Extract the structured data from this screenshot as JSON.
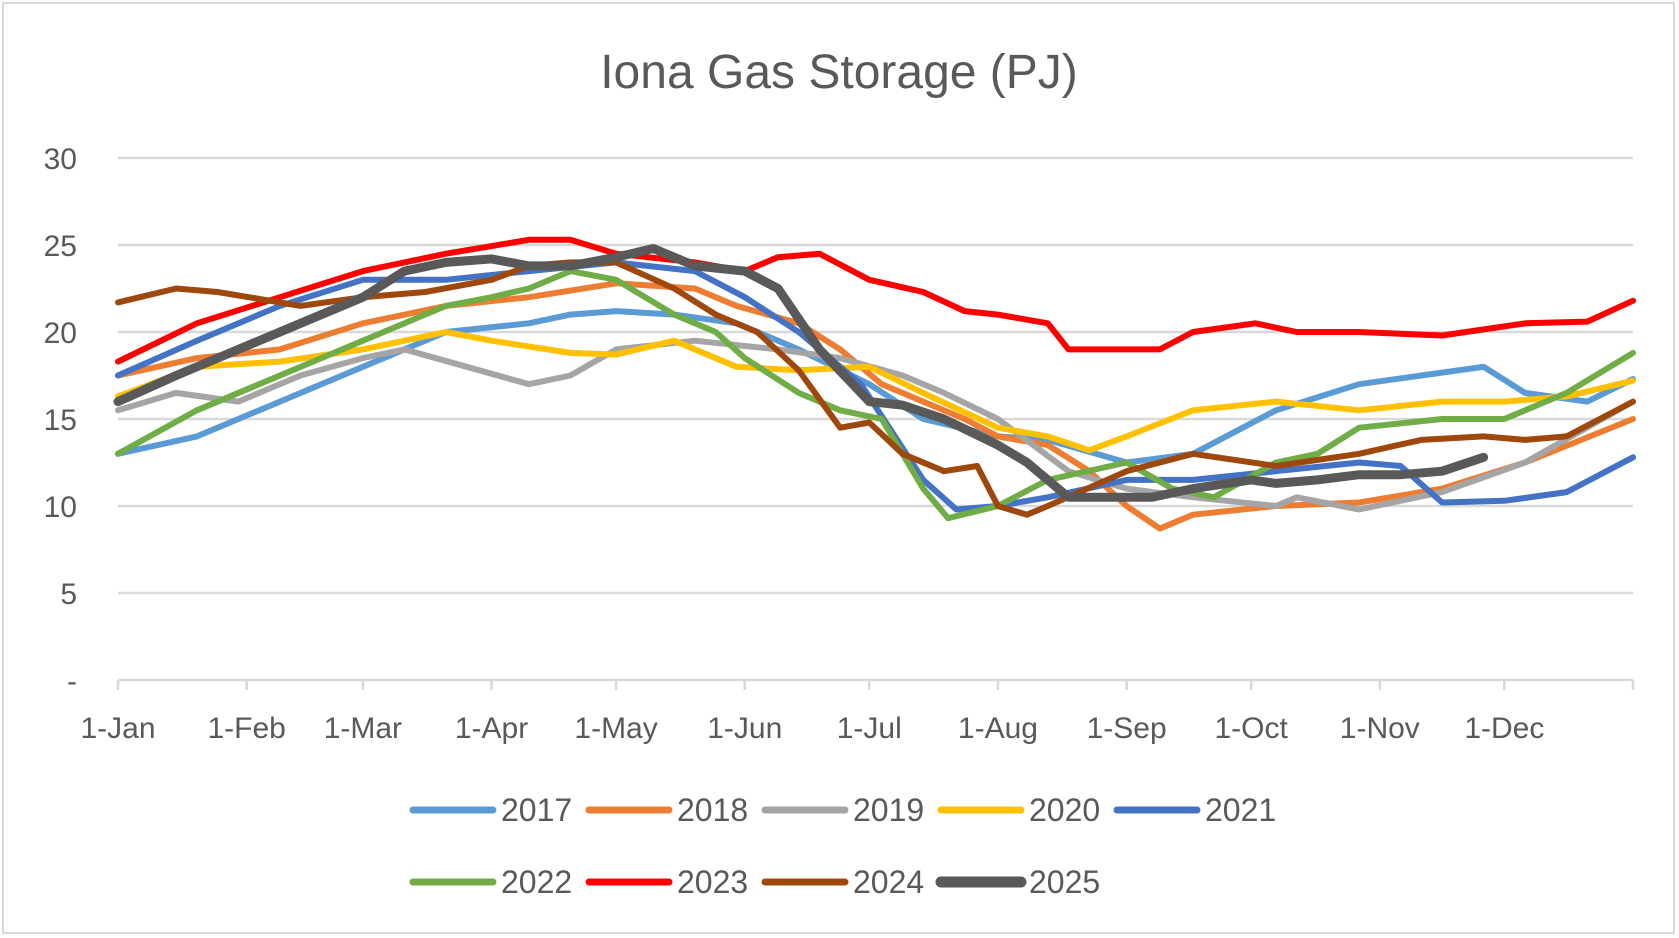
{
  "chart_data": {
    "type": "line",
    "title": "Iona Gas Storage (PJ)",
    "xlabel": "",
    "ylabel": "",
    "ylim": [
      0,
      30
    ],
    "y_ticks": [
      {
        "value": 0,
        "label": "-"
      },
      {
        "value": 5,
        "label": "5"
      },
      {
        "value": 10,
        "label": "10"
      },
      {
        "value": 15,
        "label": "15"
      },
      {
        "value": 20,
        "label": "20"
      },
      {
        "value": 25,
        "label": "25"
      },
      {
        "value": 30,
        "label": "30"
      }
    ],
    "x_ticks": [
      {
        "day": 1,
        "label": "1-Jan"
      },
      {
        "day": 32,
        "label": "1-Feb"
      },
      {
        "day": 60,
        "label": "1-Mar"
      },
      {
        "day": 91,
        "label": "1-Apr"
      },
      {
        "day": 121,
        "label": "1-May"
      },
      {
        "day": 152,
        "label": "1-Jun"
      },
      {
        "day": 182,
        "label": "1-Jul"
      },
      {
        "day": 213,
        "label": "1-Aug"
      },
      {
        "day": 244,
        "label": "1-Sep"
      },
      {
        "day": 274,
        "label": "1-Oct"
      },
      {
        "day": 305,
        "label": "1-Nov"
      },
      {
        "day": 335,
        "label": "1-Dec"
      }
    ],
    "xlim": [
      1,
      366
    ],
    "grid": true,
    "legend": "bottom",
    "series": [
      {
        "name": "2017",
        "color": "#5b9bd5",
        "x": [
          1,
          20,
          40,
          60,
          80,
          100,
          110,
          121,
          135,
          150,
          165,
          182,
          195,
          213,
          225,
          244,
          260,
          280,
          300,
          315,
          330,
          340,
          355,
          366
        ],
        "y": [
          13,
          14,
          16,
          18,
          20,
          20.5,
          21,
          21.2,
          21,
          20.5,
          19,
          17,
          15,
          14,
          13.8,
          12.5,
          13,
          15.5,
          17,
          17.5,
          18,
          16.5,
          16,
          17.3
        ]
      },
      {
        "name": "2018",
        "color": "#ed7d31",
        "x": [
          1,
          20,
          40,
          60,
          80,
          100,
          121,
          140,
          150,
          165,
          175,
          185,
          195,
          205,
          213,
          225,
          235,
          244,
          252,
          260,
          280,
          300,
          320,
          340,
          366
        ],
        "y": [
          17.5,
          18.5,
          19,
          20.5,
          21.5,
          22,
          22.8,
          22.5,
          21.5,
          20.5,
          19,
          17,
          16,
          15,
          14,
          13.5,
          12,
          10,
          8.7,
          9.5,
          10,
          10.2,
          11,
          12.5,
          15
        ]
      },
      {
        "name": "2019",
        "color": "#a5a5a5",
        "x": [
          1,
          15,
          30,
          45,
          60,
          70,
          85,
          100,
          110,
          121,
          140,
          160,
          175,
          190,
          200,
          213,
          230,
          244,
          260,
          280,
          285,
          300,
          320,
          340,
          366
        ],
        "y": [
          15.5,
          16.5,
          16,
          17.5,
          18.5,
          19,
          18,
          17,
          17.5,
          19,
          19.5,
          19,
          18.5,
          17.5,
          16.5,
          15,
          12,
          11,
          10.5,
          10,
          10.5,
          9.8,
          10.8,
          12.5,
          16
        ]
      },
      {
        "name": "2020",
        "color": "#ffc000",
        "x": [
          1,
          20,
          40,
          60,
          80,
          91,
          110,
          121,
          135,
          150,
          165,
          182,
          195,
          213,
          225,
          235,
          244,
          260,
          280,
          300,
          320,
          335,
          350,
          366
        ],
        "y": [
          16.3,
          18,
          18.3,
          19,
          20,
          19.5,
          18.8,
          18.7,
          19.5,
          18,
          17.8,
          18,
          16.5,
          14.5,
          14,
          13.2,
          14,
          15.5,
          16,
          15.5,
          16,
          16,
          16.3,
          17.2
        ]
      },
      {
        "name": "2021",
        "color": "#4472c4",
        "x": [
          1,
          20,
          40,
          60,
          80,
          100,
          121,
          140,
          152,
          165,
          180,
          195,
          203,
          213,
          225,
          244,
          260,
          280,
          300,
          310,
          320,
          335,
          350,
          366
        ],
        "y": [
          17.5,
          19.5,
          21.5,
          23,
          23,
          23.5,
          24,
          23.5,
          22,
          20,
          17,
          11.5,
          9.8,
          10,
          10.5,
          11.5,
          11.5,
          12,
          12.5,
          12.3,
          10.2,
          10.3,
          10.8,
          12.8
        ]
      },
      {
        "name": "2022",
        "color": "#70ad47",
        "x": [
          1,
          20,
          40,
          60,
          80,
          91,
          100,
          110,
          121,
          135,
          145,
          152,
          165,
          175,
          185,
          195,
          201,
          213,
          225,
          244,
          255,
          265,
          280,
          290,
          300,
          320,
          335,
          350,
          366
        ],
        "y": [
          13,
          15.5,
          17.5,
          19.5,
          21.5,
          22,
          22.5,
          23.5,
          23,
          21,
          20,
          18.5,
          16.5,
          15.5,
          15,
          11,
          9.3,
          10,
          11.5,
          12.5,
          11,
          10.5,
          12.5,
          13,
          14.5,
          15,
          15,
          16.5,
          18.8
        ]
      },
      {
        "name": "2023",
        "color": "#ff0000",
        "x": [
          1,
          20,
          40,
          60,
          80,
          100,
          110,
          121,
          140,
          152,
          160,
          170,
          182,
          195,
          205,
          213,
          225,
          230,
          244,
          252,
          260,
          275,
          285,
          300,
          320,
          340,
          355,
          366
        ],
        "y": [
          18.3,
          20.5,
          22,
          23.5,
          24.5,
          25.3,
          25.3,
          24.5,
          24,
          23.5,
          24.3,
          24.5,
          23,
          22.3,
          21.2,
          21,
          20.5,
          19,
          19,
          19,
          20,
          20.5,
          20,
          20,
          19.8,
          20.5,
          20.6,
          21.8
        ]
      },
      {
        "name": "2024",
        "color": "#9e480e",
        "x": [
          1,
          15,
          25,
          45,
          60,
          75,
          91,
          100,
          110,
          121,
          135,
          145,
          155,
          165,
          175,
          182,
          190,
          200,
          208,
          213,
          220,
          225,
          244,
          260,
          280,
          300,
          315,
          330,
          340,
          350,
          366
        ],
        "y": [
          21.7,
          22.5,
          22.3,
          21.5,
          22,
          22.3,
          23,
          23.8,
          24,
          24,
          22.5,
          21,
          20,
          17.8,
          14.5,
          14.8,
          13,
          12,
          12.3,
          10,
          9.5,
          10,
          12,
          13,
          12.3,
          13,
          13.8,
          14,
          13.8,
          14,
          16
        ]
      },
      {
        "name": "2025",
        "color": "#595959",
        "x": [
          1,
          15,
          30,
          45,
          60,
          70,
          80,
          91,
          100,
          110,
          121,
          130,
          140,
          152,
          160,
          170,
          182,
          190,
          200,
          213,
          220,
          225,
          230,
          244,
          250,
          260,
          274,
          280,
          290,
          300,
          310,
          320,
          330
        ],
        "y": [
          16,
          17.5,
          19,
          20.5,
          22,
          23.5,
          24,
          24.2,
          23.8,
          23.8,
          24.3,
          24.8,
          23.8,
          23.5,
          22.5,
          19,
          16,
          15.8,
          15,
          13.5,
          12.5,
          11.5,
          10.5,
          10.5,
          10.5,
          11,
          11.5,
          11.3,
          11.5,
          11.8,
          11.8,
          12,
          12.8
        ]
      }
    ]
  }
}
